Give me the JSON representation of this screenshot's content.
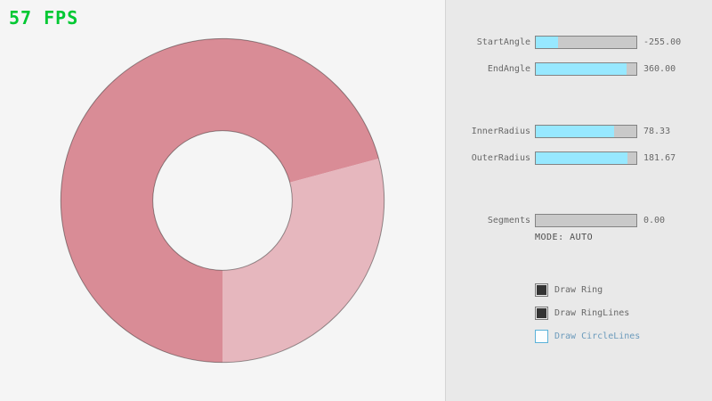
{
  "fps": {
    "label": "57 FPS"
  },
  "ring": {
    "start_angle": -255.0,
    "end_angle": 360.0,
    "inner_radius": 78.33,
    "outer_radius": 181.67,
    "segments": 0.0,
    "mode": "AUTO"
  },
  "panel": {
    "sliders": [
      {
        "label": "StartAngle",
        "value": "-255.00",
        "percent": 21.7
      },
      {
        "label": "EndAngle",
        "value": "360.00",
        "percent": 90.0
      },
      {
        "label": "InnerRadius",
        "value": "78.33",
        "percent": 78.3
      },
      {
        "label": "OuterRadius",
        "value": "181.67",
        "percent": 90.8
      },
      {
        "label": "Segments",
        "value": "0.00",
        "percent": 0
      }
    ],
    "mode_text": "MODE: AUTO",
    "checkboxes": [
      {
        "label": "Draw Ring",
        "checked": true,
        "focused": false
      },
      {
        "label": "Draw RingLines",
        "checked": true,
        "focused": false
      },
      {
        "label": "Draw CircleLines",
        "checked": false,
        "focused": true
      }
    ]
  },
  "colors": {
    "bg": "#F5F5F5",
    "panel_bg": "#E9E9E9",
    "divider": "#D4D4D4",
    "fps_green": "#00C832",
    "slider_track": "#C9C9C9",
    "slider_fill": "#97E8FF",
    "slider_border": "#838383",
    "label_text": "#686868",
    "mode_text": "#4E4E4E",
    "checkbox_border": "#7A7A7A",
    "checkbox_check": "#343434",
    "focus_border": "#5BB2D9",
    "focus_text": "#6C9BBC",
    "ring_light": "#E6B7BE",
    "ring_dark": "#D98C96",
    "ring_outline": "rgba(0,0,0,0.4)"
  }
}
